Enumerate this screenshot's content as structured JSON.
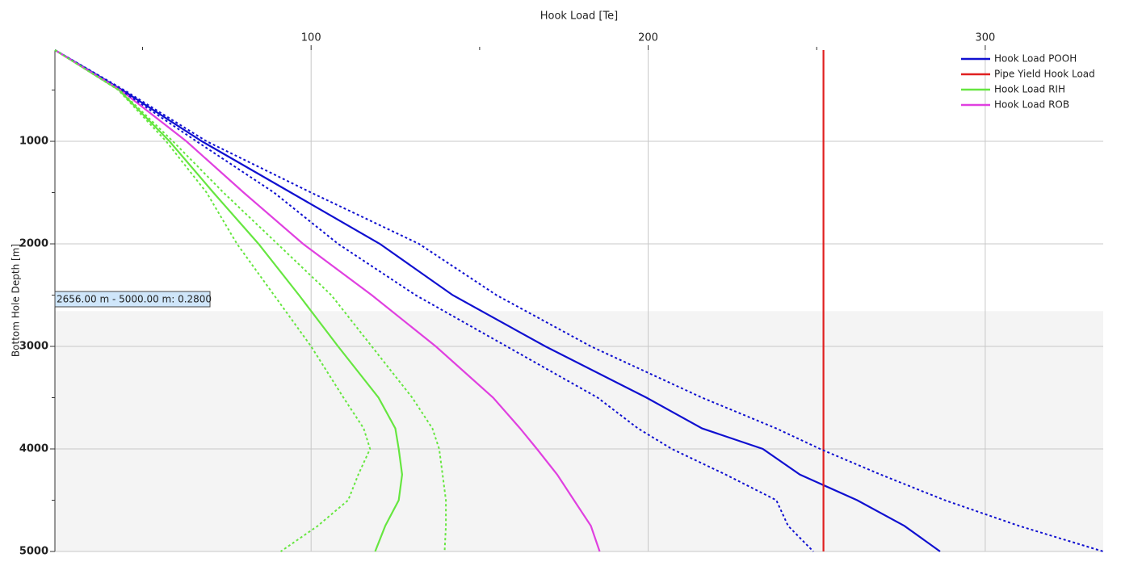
{
  "chart_data": {
    "type": "line",
    "title": "Hook Load [Te]",
    "y_label": "Bottom Hole Depth [m]",
    "xlim": [
      24,
      335
    ],
    "xticks": [
      100,
      200,
      300
    ],
    "xminor": [
      50,
      150,
      250
    ],
    "ylim": [
      110,
      5000
    ],
    "yticks": [
      1000,
      2000,
      3000,
      4000,
      5000
    ],
    "yminor": [
      500,
      1500,
      2500,
      3500,
      4500
    ],
    "y_inverted": true,
    "grid": true,
    "legend": "top-right",
    "annotation": {
      "text": "2656.00 m - 5000.00 m: 0.2800",
      "range": [
        2656,
        5000
      ],
      "shade": "#f4f4f4"
    },
    "y": [
      110,
      500,
      1000,
      1500,
      2000,
      2500,
      3000,
      3500,
      3800,
      4000,
      4250,
      4500,
      4750,
      5000
    ],
    "series": [
      {
        "name": "Hook Load POOH",
        "color": "#1010d0",
        "dashed": false,
        "values": [
          24,
          44,
          67.6,
          94,
          120.4,
          142,
          169.5,
          199.5,
          216,
          234,
          245,
          262,
          276,
          286.6
        ]
      },
      {
        "name": "Pipe Yield Hook Load",
        "color": "#e02020",
        "dashed": false,
        "values": [
          252,
          252,
          252,
          252,
          252,
          252,
          252,
          252,
          252,
          252,
          252,
          252,
          252,
          252
        ]
      },
      {
        "name": "Hook Load RIH",
        "color": "#66e640",
        "dashed": false,
        "values": [
          24,
          43,
          58,
          71,
          84.4,
          96.4,
          108,
          120,
          125,
          126,
          127,
          126,
          122,
          119
        ]
      },
      {
        "name": "Hook Load ROB",
        "color": "#e040e0",
        "dashed": false,
        "values": [
          24,
          43.5,
          63,
          80,
          97.6,
          118,
          137,
          154,
          162,
          167,
          173,
          178,
          183,
          185.6
        ]
      },
      {
        "color": "#1010d0",
        "dashed": true,
        "values": [
          24,
          44.5,
          69,
          100,
          132,
          155,
          183,
          216,
          238,
          251,
          269,
          288,
          310,
          335
        ]
      },
      {
        "color": "#1010d0",
        "dashed": true,
        "values": [
          24,
          43.5,
          66,
          89,
          108,
          131,
          158,
          185,
          197,
          207,
          223,
          238,
          241.5,
          249
        ]
      },
      {
        "color": "#66e640",
        "dashed": true,
        "values": [
          24,
          43.2,
          59,
          74,
          90,
          106,
          118,
          130,
          136,
          138,
          139,
          140,
          140,
          139.6
        ]
      },
      {
        "color": "#66e640",
        "dashed": true,
        "values": [
          24,
          42.8,
          57,
          69,
          78,
          89,
          100,
          109.6,
          115.6,
          117.5,
          114,
          111,
          102,
          91
        ]
      }
    ]
  }
}
